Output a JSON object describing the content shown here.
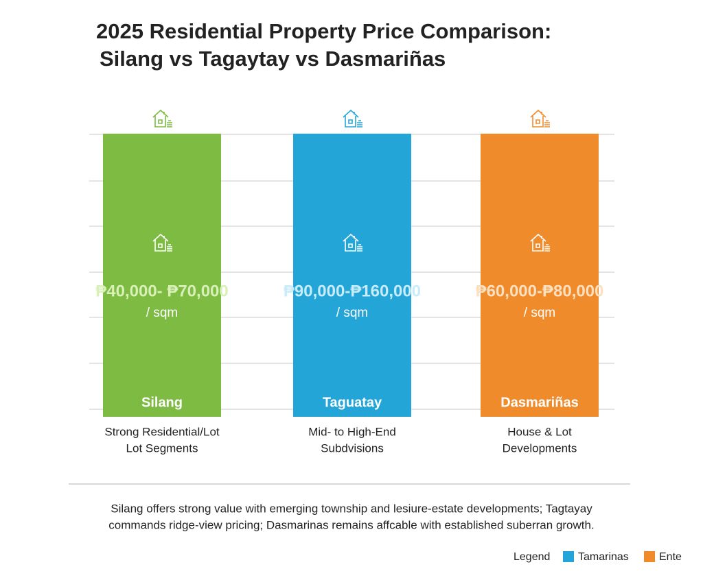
{
  "header": {
    "title": [
      "2025 Residential Property Price Comparison:",
      "Silang vs Tagaytay vs Dasmariñas"
    ]
  },
  "columns": [
    {
      "name": "Silang",
      "price": "₱40,000- ₱70,000",
      "unit": "/ sqm",
      "description": [
        "Strong Residential/Lot",
        "Lot Segments"
      ],
      "color": "#7dbb42",
      "text_color": "#d9f0b8"
    },
    {
      "name": "Taguatay",
      "price": "₱90,000-₱160,000",
      "unit": "/ sqm",
      "description": [
        "Mid- to High-End",
        "Subdvisions"
      ],
      "color": "#24a5d8",
      "text_color": "#c8ecfa"
    },
    {
      "name": "Dasmariñas",
      "price": "₱60,000-₱80,000",
      "unit": "/ sqm",
      "description": [
        "House & Lot",
        "Developments"
      ],
      "color": "#f08b2c",
      "text_color": "#fde0c0"
    }
  ],
  "footnote": [
    "Silang offers strong value with emerging township and lesiure-estate developments; Tagtayay",
    "commands ridge-view pricing; Dasmarinas remains affcable with established suberran growth."
  ],
  "legend": {
    "title": "Legend",
    "items": [
      {
        "label": "Tamarinas",
        "color": "#24a5d8"
      },
      {
        "label": "Ente",
        "color": "#f08b2c"
      }
    ]
  }
}
